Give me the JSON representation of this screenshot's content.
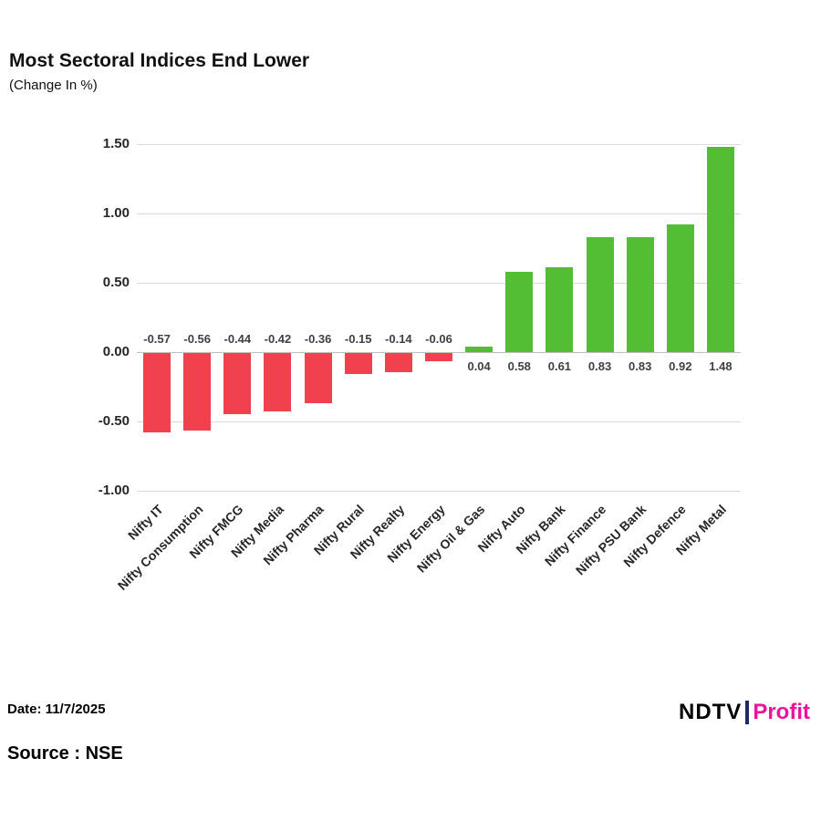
{
  "page": {
    "title": "Most Sectoral Indices End Lower",
    "subtitle": "(Change In %)",
    "date_label": "Date: 11/7/2025",
    "source_label": "Source : NSE",
    "logo": {
      "ndtv": "NDTV",
      "profit": "Profit"
    }
  },
  "chart_data": {
    "type": "bar",
    "title": "Most Sectoral Indices End Lower",
    "subtitle": "(Change In %)",
    "categories": [
      "Nifty IT",
      "Nifty Consumption",
      "Nifty FMCG",
      "Nifty Media",
      "Nifty Pharma",
      "Nifty Rural",
      "Nifty Realty",
      "Nifty Energy",
      "Nifty Oil & Gas",
      "Nifty Auto",
      "Nifty Bank",
      "Nifty Finance",
      "Nifty PSU Bank",
      "Nifty Defence",
      "Nifty Metal"
    ],
    "values": [
      -0.57,
      -0.56,
      -0.44,
      -0.42,
      -0.36,
      -0.15,
      -0.14,
      -0.06,
      0.04,
      0.58,
      0.61,
      0.83,
      0.83,
      0.92,
      1.48
    ],
    "value_labels": [
      "-0.57",
      "-0.56",
      "-0.44",
      "-0.42",
      "-0.36",
      "-0.15",
      "-0.14",
      "-0.06",
      "0.04",
      "0.58",
      "0.61",
      "0.83",
      "0.83",
      "0.92",
      "1.48"
    ],
    "xlabel": "",
    "ylabel": "",
    "ylim": [
      -1.0,
      1.5
    ],
    "ytick_step": 0.5,
    "yticks": [
      "1.50",
      "1.00",
      "0.50",
      "0.00",
      "-0.50",
      "-1.00"
    ],
    "grid": true,
    "legend": "none",
    "colors": {
      "positive": "#53be33",
      "negative": "#f2414e",
      "grid": "#d9d9d9",
      "label": "#404040"
    }
  }
}
